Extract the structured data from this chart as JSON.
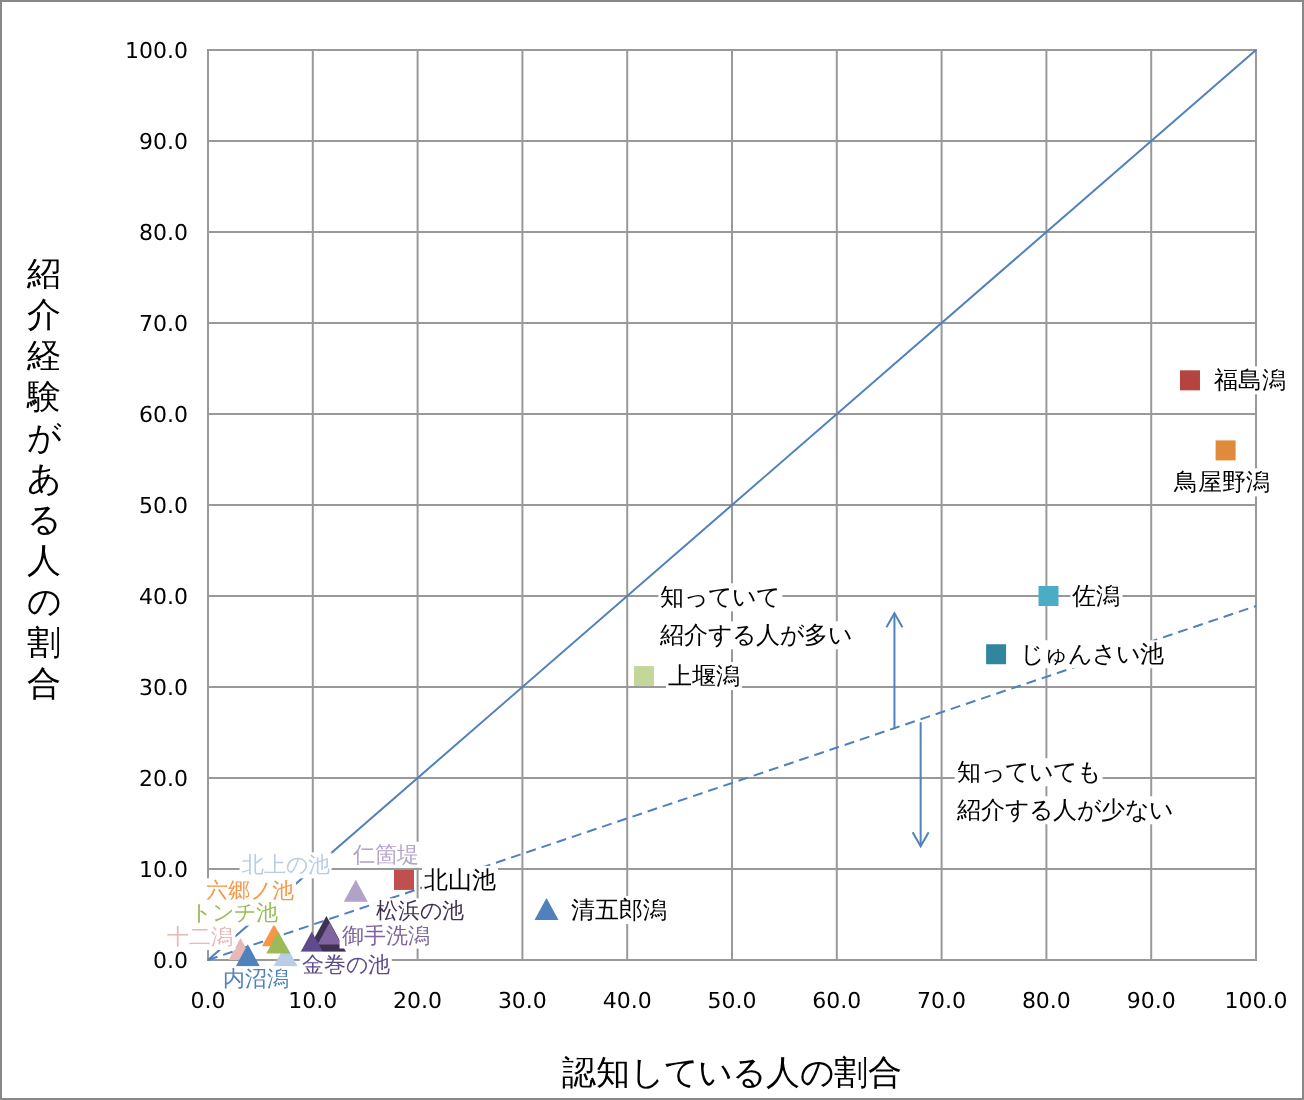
{
  "chart_data": {
    "type": "scatter",
    "xlabel": "認知している人の割合",
    "ylabel": "紹介経験がある人の割合",
    "xlim": [
      0,
      100
    ],
    "ylim": [
      0,
      100
    ],
    "xticks": [
      {
        "value": 0,
        "label": "0.0"
      },
      {
        "value": 10,
        "label": "10.0"
      },
      {
        "value": 20,
        "label": "20.0"
      },
      {
        "value": 30,
        "label": "30.0"
      },
      {
        "value": 40,
        "label": "40.0"
      },
      {
        "value": 50,
        "label": "50.0"
      },
      {
        "value": 60,
        "label": "60.0"
      },
      {
        "value": 70,
        "label": "70.0"
      },
      {
        "value": 80,
        "label": "80.0"
      },
      {
        "value": 90,
        "label": "90.0"
      },
      {
        "value": 100,
        "label": "100.0"
      }
    ],
    "yticks": [
      {
        "value": 0,
        "label": "0.0"
      },
      {
        "value": 10,
        "label": "10.0"
      },
      {
        "value": 20,
        "label": "20.0"
      },
      {
        "value": 30,
        "label": "30.0"
      },
      {
        "value": 40,
        "label": "40.0"
      },
      {
        "value": 50,
        "label": "50.0"
      },
      {
        "value": 60,
        "label": "60.0"
      },
      {
        "value": 70,
        "label": "70.0"
      },
      {
        "value": 80,
        "label": "80.0"
      },
      {
        "value": 90,
        "label": "90.0"
      },
      {
        "value": 100,
        "label": "100.0"
      }
    ],
    "grid": true,
    "series": [
      {
        "name": "福島潟",
        "color": "#b5433f",
        "marker": "square",
        "x": [
          93.7
        ],
        "values": [
          63.7
        ]
      },
      {
        "name": "鳥屋野潟",
        "color": "#e08a3c",
        "marker": "square",
        "x": [
          97.1
        ],
        "values": [
          56.0
        ]
      },
      {
        "name": "佐潟",
        "color": "#4bacc6",
        "marker": "square",
        "x": [
          80.2
        ],
        "values": [
          40.0
        ]
      },
      {
        "name": "じゅんさい池",
        "color": "#31859c",
        "marker": "square",
        "x": [
          75.2
        ],
        "values": [
          33.6
        ]
      },
      {
        "name": "上堰潟",
        "color": "#c4d79b",
        "marker": "square",
        "x": [
          41.6
        ],
        "values": [
          31.2
        ]
      },
      {
        "name": "清五郎潟",
        "color": "#4f81bd",
        "marker": "triangle",
        "x": [
          32.3
        ],
        "values": [
          5.5
        ]
      },
      {
        "name": "北山池",
        "color": "#c0504d",
        "marker": "square",
        "x": [
          18.7
        ],
        "values": [
          8.8
        ]
      },
      {
        "name": "仁箇堤",
        "color": "#b3a2c7",
        "marker": "triangle",
        "x": [
          14.1
        ],
        "values": [
          7.5
        ]
      },
      {
        "name": "松浜の池",
        "color": "#403152",
        "marker": "triangle",
        "x": [
          11.3
        ],
        "values": [
          2.6
        ]
      },
      {
        "name": "御手洗潟",
        "color": "#8064a2",
        "marker": "triangle",
        "x": [
          11.6
        ],
        "values": [
          2.8
        ]
      },
      {
        "name": "金巻の池",
        "color": "#5f4b8b",
        "marker": "triangle",
        "x": [
          9.9
        ],
        "values": [
          1.8
        ]
      },
      {
        "name": "北上の池",
        "color": "#b9cde5",
        "marker": "triangle",
        "x": [
          7.4
        ],
        "values": [
          0.4
        ]
      },
      {
        "name": "六郷ノ池",
        "color": "#f79646",
        "marker": "triangle",
        "x": [
          6.3
        ],
        "values": [
          2.6
        ]
      },
      {
        "name": "トンチ池",
        "color": "#9bbb59",
        "marker": "triangle",
        "x": [
          6.7
        ],
        "values": [
          1.8
        ]
      },
      {
        "name": "十二潟",
        "color": "#e6b9b8",
        "marker": "triangle",
        "x": [
          3.1
        ],
        "values": [
          1.1
        ]
      },
      {
        "name": "内沼潟",
        "color": "#4f81bd",
        "marker": "triangle",
        "x": [
          3.8
        ],
        "values": [
          0.4
        ]
      },
      {
        "type": "line",
        "color": "#4f81bd",
        "line_style": "solid",
        "marker": "none",
        "x": [
          0,
          100
        ],
        "values": [
          0,
          100
        ]
      },
      {
        "type": "line",
        "color": "#4f81bd",
        "line_style": "dashed",
        "marker": "none",
        "x": [
          0,
          100
        ],
        "values": [
          0,
          38.9
        ]
      }
    ],
    "annotations": [
      "知っていて紹介する人が多い",
      "知っていても紹介する人が少ない"
    ]
  }
}
